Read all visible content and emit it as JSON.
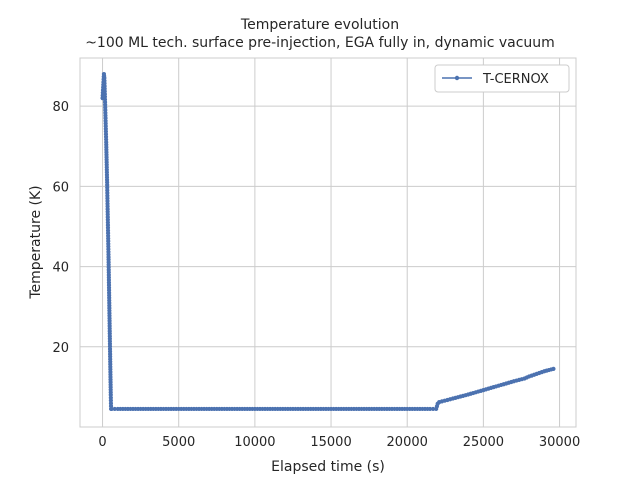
{
  "chart_data": {
    "type": "line",
    "title": "Temperature evolution",
    "subtitle": "~100 ML tech. surface pre-injection, EGA fully in, dynamic vacuum",
    "xlabel": "Elapsed time (s)",
    "ylabel": "Temperature (K)",
    "xlim": [
      -1480,
      31080
    ],
    "ylim": [
      0,
      92
    ],
    "xticks": [
      0,
      5000,
      10000,
      15000,
      20000,
      25000,
      30000
    ],
    "yticks": [
      20,
      40,
      60,
      80
    ],
    "grid": true,
    "legend_position": "top-right",
    "series": [
      {
        "name": "T-CERNOX",
        "color": "#4c72b0",
        "marker": "circle",
        "x": [
          0,
          30,
          60,
          90,
          120,
          150,
          180,
          210,
          240,
          270,
          300,
          330,
          360,
          390,
          420,
          450,
          480,
          510,
          540,
          560,
          600,
          1000,
          2000,
          4000,
          6000,
          8000,
          10000,
          12000,
          14000,
          16000,
          18000,
          20000,
          21500,
          21900,
          22000,
          22100,
          23000,
          24000,
          25000,
          26000,
          27000,
          27700,
          28000,
          29000,
          29600
        ],
        "y": [
          82,
          84,
          86,
          88,
          87,
          83,
          79,
          75,
          71,
          66,
          61,
          55,
          49,
          43,
          36,
          29,
          22,
          15,
          8,
          4.5,
          4.5,
          4.5,
          4.5,
          4.5,
          4.5,
          4.5,
          4.5,
          4.5,
          4.5,
          4.5,
          4.5,
          4.5,
          4.5,
          4.5,
          5.8,
          6.2,
          7.1,
          8.1,
          9.2,
          10.3,
          11.4,
          12.1,
          12.6,
          13.9,
          14.5
        ]
      }
    ]
  }
}
